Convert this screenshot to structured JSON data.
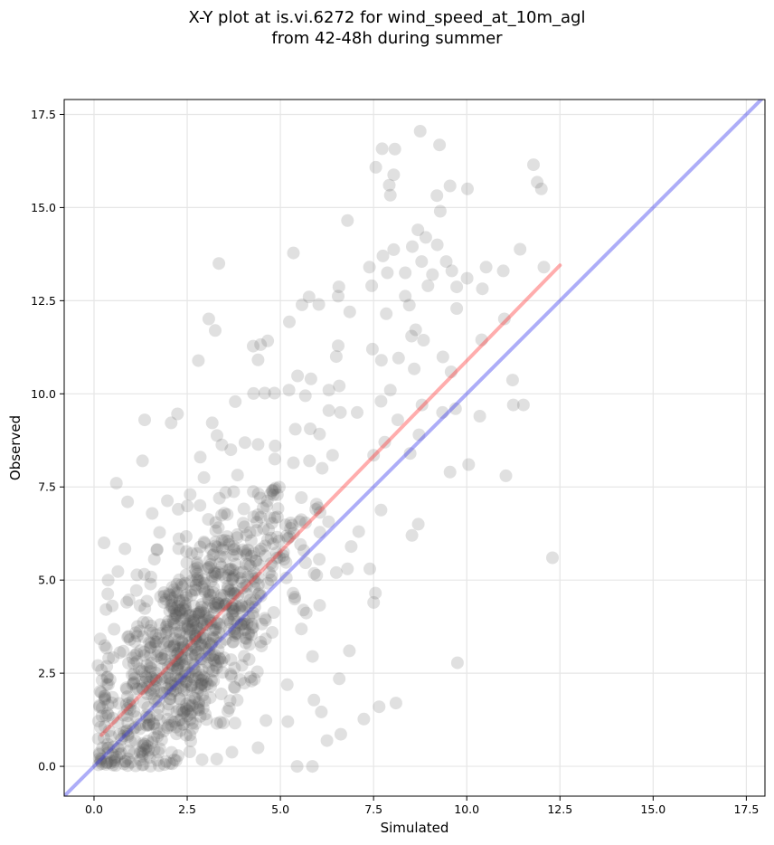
{
  "chart_data": {
    "type": "scatter",
    "title_line1": "X-Y plot at is.vi.6272 for wind_speed_at_10m_agl",
    "title_line2": "from 42-48h during summer",
    "xlabel": "Simulated",
    "ylabel": "Observed",
    "xlim": [
      -0.8,
      18.0
    ],
    "ylim": [
      -0.8,
      17.9
    ],
    "xticks": [
      0.0,
      2.5,
      5.0,
      7.5,
      10.0,
      12.5,
      15.0,
      17.5
    ],
    "yticks": [
      0.0,
      2.5,
      5.0,
      7.5,
      10.0,
      12.5,
      15.0,
      17.5
    ],
    "xtick_labels": [
      "0.0",
      "2.5",
      "5.0",
      "7.5",
      "10.0",
      "12.5",
      "15.0",
      "17.5"
    ],
    "ytick_labels": [
      "0.0",
      "2.5",
      "5.0",
      "7.5",
      "10.0",
      "12.5",
      "15.0",
      "17.5"
    ],
    "grid": true,
    "point_color": "#555555",
    "point_opacity": 0.18,
    "series": [
      {
        "style": "scatter",
        "points": [
          [
            8.75,
            17.05
          ],
          [
            7.73,
            16.58
          ],
          [
            8.07,
            16.57
          ],
          [
            9.27,
            16.68
          ],
          [
            7.56,
            16.08
          ],
          [
            7.92,
            15.6
          ],
          [
            8.04,
            15.88
          ],
          [
            7.95,
            15.33
          ],
          [
            9.55,
            15.58
          ],
          [
            10.02,
            15.5
          ],
          [
            11.79,
            16.15
          ],
          [
            11.89,
            15.68
          ],
          [
            12.0,
            15.5
          ],
          [
            9.2,
            15.32
          ],
          [
            9.29,
            14.9
          ],
          [
            6.8,
            14.65
          ],
          [
            5.35,
            13.78
          ],
          [
            3.35,
            13.5
          ],
          [
            8.69,
            14.4
          ],
          [
            8.9,
            14.2
          ],
          [
            8.54,
            13.95
          ],
          [
            8.04,
            13.87
          ],
          [
            7.75,
            13.7
          ],
          [
            9.21,
            14.0
          ],
          [
            10.52,
            13.4
          ],
          [
            10.98,
            13.3
          ],
          [
            11.43,
            13.88
          ],
          [
            12.07,
            13.4
          ],
          [
            7.39,
            13.4
          ],
          [
            7.87,
            13.25
          ],
          [
            8.35,
            13.25
          ],
          [
            8.79,
            13.55
          ],
          [
            9.45,
            13.55
          ],
          [
            9.6,
            13.3
          ],
          [
            9.08,
            13.2
          ],
          [
            10.01,
            13.1
          ],
          [
            10.42,
            12.82
          ],
          [
            9.73,
            12.87
          ],
          [
            8.96,
            12.9
          ],
          [
            8.35,
            12.62
          ],
          [
            7.45,
            12.9
          ],
          [
            7.84,
            12.15
          ],
          [
            8.46,
            12.38
          ],
          [
            9.73,
            12.29
          ],
          [
            6.57,
            12.87
          ],
          [
            6.55,
            12.62
          ],
          [
            6.86,
            12.2
          ],
          [
            5.58,
            12.39
          ],
          [
            5.77,
            12.6
          ],
          [
            6.03,
            12.4
          ],
          [
            5.24,
            11.93
          ],
          [
            3.08,
            12.01
          ],
          [
            3.25,
            11.7
          ],
          [
            4.27,
            11.28
          ],
          [
            4.47,
            11.32
          ],
          [
            4.66,
            11.42
          ],
          [
            4.4,
            10.91
          ],
          [
            2.8,
            10.89
          ],
          [
            6.5,
            11.0
          ],
          [
            6.55,
            11.29
          ],
          [
            7.47,
            11.2
          ],
          [
            7.71,
            10.9
          ],
          [
            8.17,
            10.96
          ],
          [
            8.52,
            11.55
          ],
          [
            8.63,
            11.72
          ],
          [
            8.84,
            11.44
          ],
          [
            9.36,
            10.99
          ],
          [
            8.59,
            10.67
          ],
          [
            9.58,
            10.59
          ],
          [
            10.4,
            11.45
          ],
          [
            11.01,
            12.01
          ],
          [
            11.23,
            10.37
          ],
          [
            7.95,
            10.1
          ],
          [
            6.58,
            10.21
          ],
          [
            5.46,
            10.48
          ],
          [
            5.82,
            10.4
          ],
          [
            6.3,
            10.1
          ],
          [
            5.23,
            10.1
          ],
          [
            5.67,
            9.95
          ],
          [
            4.28,
            10.01
          ],
          [
            4.58,
            10.02
          ],
          [
            4.84,
            10.02
          ],
          [
            3.79,
            9.79
          ],
          [
            2.24,
            9.46
          ],
          [
            1.36,
            9.3
          ],
          [
            2.07,
            9.22
          ],
          [
            3.17,
            9.22
          ],
          [
            3.3,
            8.88
          ],
          [
            3.43,
            8.63
          ],
          [
            3.67,
            8.5
          ],
          [
            4.05,
            8.69
          ],
          [
            4.4,
            8.64
          ],
          [
            4.86,
            8.6
          ],
          [
            5.4,
            9.05
          ],
          [
            5.8,
            9.06
          ],
          [
            6.05,
            8.92
          ],
          [
            6.3,
            9.55
          ],
          [
            6.61,
            9.5
          ],
          [
            7.06,
            9.5
          ],
          [
            7.7,
            9.8
          ],
          [
            8.15,
            9.3
          ],
          [
            8.8,
            9.7
          ],
          [
            9.35,
            9.5
          ],
          [
            9.7,
            9.6
          ],
          [
            10.35,
            9.4
          ],
          [
            11.25,
            9.7
          ],
          [
            11.52,
            9.7
          ],
          [
            2.85,
            8.3
          ],
          [
            2.95,
            7.75
          ],
          [
            3.85,
            7.82
          ],
          [
            4.85,
            8.25
          ],
          [
            5.35,
            8.15
          ],
          [
            5.78,
            8.2
          ],
          [
            6.12,
            8.0
          ],
          [
            6.4,
            8.35
          ],
          [
            7.5,
            8.35
          ],
          [
            7.8,
            8.7
          ],
          [
            8.48,
            8.4
          ],
          [
            8.72,
            8.9
          ],
          [
            9.55,
            7.9
          ],
          [
            10.05,
            8.1
          ],
          [
            11.05,
            7.8
          ],
          [
            12.3,
            5.6
          ],
          [
            9.75,
            2.78
          ],
          [
            8.7,
            6.5
          ],
          [
            8.53,
            6.2
          ],
          [
            7.7,
            6.88
          ],
          [
            7.1,
            6.3
          ],
          [
            6.9,
            5.9
          ],
          [
            6.8,
            5.3
          ],
          [
            6.5,
            5.2
          ],
          [
            7.55,
            4.65
          ],
          [
            7.5,
            4.4
          ],
          [
            7.4,
            5.3
          ],
          [
            8.1,
            1.7
          ],
          [
            7.65,
            1.6
          ],
          [
            7.24,
            1.27
          ],
          [
            6.62,
            0.86
          ],
          [
            6.25,
            0.69
          ],
          [
            5.45,
            0.0
          ],
          [
            5.86,
            0.0
          ],
          [
            0.27,
            6.0
          ],
          [
            0.6,
            7.6
          ],
          [
            1.3,
            8.2
          ],
          [
            0.9,
            7.1
          ],
          [
            1.56,
            6.79
          ],
          [
            2.58,
            7.3
          ],
          [
            2.26,
            6.9
          ],
          [
            1.76,
            6.28
          ],
          [
            0.83,
            5.84
          ],
          [
            0.38,
            5.0
          ],
          [
            0.64,
            5.23
          ],
          [
            1.15,
            5.14
          ],
          [
            0.94,
            4.47
          ],
          [
            0.32,
            4.21
          ],
          [
            0.54,
            3.68
          ],
          [
            0.2,
            2.58
          ],
          [
            0.16,
            2.01
          ],
          [
            0.36,
            1.42
          ],
          [
            0.68,
            0.85
          ],
          [
            1.3,
            0.35
          ],
          [
            2.1,
            0.07
          ],
          [
            2.9,
            0.18
          ],
          [
            3.7,
            0.38
          ],
          [
            4.4,
            0.5
          ],
          [
            5.2,
            1.2
          ],
          [
            5.9,
            1.78
          ],
          [
            6.1,
            1.46
          ],
          [
            6.58,
            2.35
          ],
          [
            6.85,
            3.1
          ]
        ]
      }
    ],
    "density_cluster": {
      "note": "dense cloud of several hundred overlapping points",
      "x_range": [
        0.1,
        6.5
      ],
      "y_range": [
        0.0,
        7.5
      ],
      "count": 900
    },
    "lines": [
      {
        "name": "",
        "color": "#ff3333",
        "opacity": 0.4,
        "x": [
          0.2,
          12.5
        ],
        "y": [
          0.84,
          13.45
        ]
      },
      {
        "name": "",
        "color": "#3333ee",
        "opacity": 0.4,
        "x": [
          -0.8,
          18.0
        ],
        "y": [
          -0.8,
          18.0
        ]
      }
    ]
  }
}
